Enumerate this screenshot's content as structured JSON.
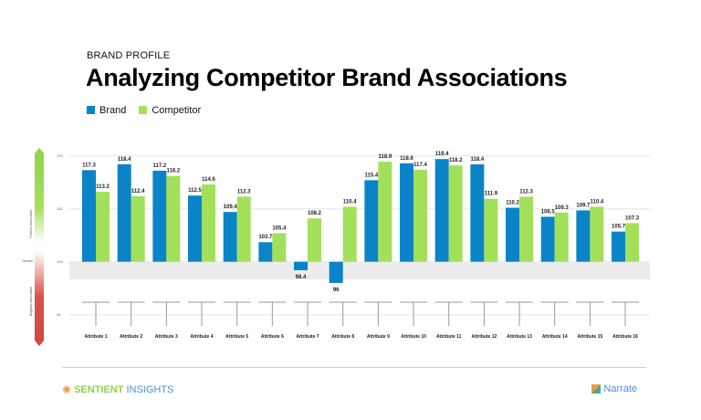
{
  "header": {
    "subtitle": "BRAND PROFILE",
    "title": "Analyzing Competitor Brand Associations"
  },
  "chart_data": {
    "type": "bar",
    "title": "Analyzing Competitor Brand Associations",
    "categories": [
      "Attribute 1",
      "Attribute 2",
      "Attribute 3",
      "Attribute 4",
      "Attribute 5",
      "Attribute 6",
      "Attribute 7",
      "Attribute 8",
      "Attribute 9",
      "Attribute 10",
      "Attribute 11",
      "Attribute 12",
      "Attribute 13",
      "Attribute 14",
      "Attribute 15",
      "Attribute 16"
    ],
    "series": [
      {
        "name": "Brand",
        "color": "#0a84c6",
        "values": [
          117.3,
          118.4,
          117.2,
          112.5,
          109.4,
          103.7,
          98.4,
          96,
          115.4,
          118.6,
          119.4,
          118.4,
          110.2,
          108.5,
          109.7,
          105.7
        ]
      },
      {
        "name": "Competitor",
        "color": "#a3e05a",
        "values": [
          113.2,
          112.4,
          116.2,
          114.6,
          112.3,
          105.4,
          108.2,
          110.4,
          118.9,
          117.4,
          118.2,
          111.9,
          112.3,
          109.3,
          110.4,
          107.3
        ]
      }
    ],
    "yticks": [
      120,
      110,
      100,
      90
    ],
    "ylim": [
      90,
      120
    ],
    "baseline": 100,
    "scale_labels": {
      "positive": "Positive Association",
      "neutral": "Neutral",
      "negative": "Negative Association"
    },
    "legend": "top-left"
  },
  "footer": {
    "left_logo": [
      "SENTIENT",
      "INSIGHTS"
    ],
    "right_logo": "Narrate"
  }
}
